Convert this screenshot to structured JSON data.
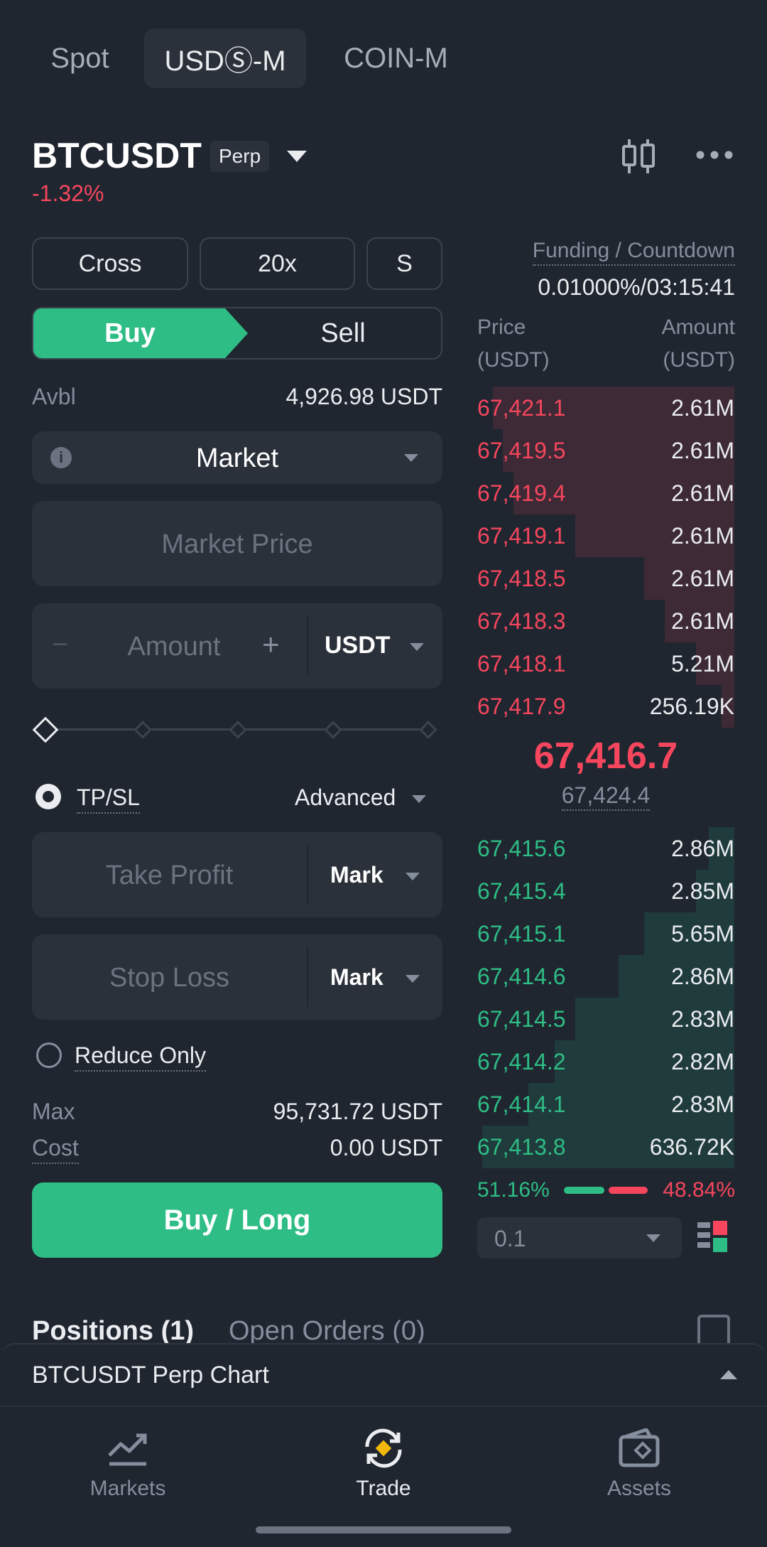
{
  "tabs": [
    "Spot",
    "USDⓈ-M",
    "COIN-M"
  ],
  "symbol": {
    "name": "BTCUSDT",
    "tag": "Perp",
    "change": "-1.32%"
  },
  "controls": {
    "margin_mode": "Cross",
    "leverage": "20x",
    "asset_mode": "S"
  },
  "toggle": {
    "buy": "Buy",
    "sell": "Sell"
  },
  "avbl": {
    "label": "Avbl",
    "value": "4,926.98 USDT"
  },
  "order_type": "Market",
  "price_field": {
    "placeholder": "Market Price"
  },
  "amount_field": {
    "placeholder": "Amount",
    "unit": "USDT",
    "minus": "−",
    "plus": "+"
  },
  "slider": {
    "percent": 0
  },
  "tpsl": {
    "label": "TP/SL",
    "advanced": "Advanced"
  },
  "take_profit": {
    "placeholder": "Take Profit",
    "trigger": "Mark"
  },
  "stop_loss": {
    "placeholder": "Stop Loss",
    "trigger": "Mark"
  },
  "reduce_only": "Reduce Only",
  "max": {
    "label": "Max",
    "value": "95,731.72 USDT"
  },
  "cost": {
    "label": "Cost",
    "value": "0.00 USDT"
  },
  "submit": "Buy / Long",
  "funding": {
    "label": "Funding / Countdown",
    "value": "0.01000%/03:15:41"
  },
  "orderbook": {
    "price_header": "Price",
    "price_unit": "(USDT)",
    "amount_header": "Amount",
    "amount_unit": "(USDT)",
    "asks": [
      {
        "price": "67,421.1",
        "amount": "2.61M",
        "depth": 0.94
      },
      {
        "price": "67,419.5",
        "amount": "2.61M",
        "depth": 0.9
      },
      {
        "price": "67,419.4",
        "amount": "2.61M",
        "depth": 0.86
      },
      {
        "price": "67,419.1",
        "amount": "2.61M",
        "depth": 0.62
      },
      {
        "price": "67,418.5",
        "amount": "2.61M",
        "depth": 0.35
      },
      {
        "price": "67,418.3",
        "amount": "2.61M",
        "depth": 0.27
      },
      {
        "price": "67,418.1",
        "amount": "5.21M",
        "depth": 0.15
      },
      {
        "price": "67,417.9",
        "amount": "256.19K",
        "depth": 0.05
      }
    ],
    "last_price": "67,416.7",
    "mark_price": "67,424.4",
    "bids": [
      {
        "price": "67,415.6",
        "amount": "2.86M",
        "depth": 0.1
      },
      {
        "price": "67,415.4",
        "amount": "2.85M",
        "depth": 0.15
      },
      {
        "price": "67,415.1",
        "amount": "5.65M",
        "depth": 0.35
      },
      {
        "price": "67,414.6",
        "amount": "2.86M",
        "depth": 0.45
      },
      {
        "price": "67,414.5",
        "amount": "2.83M",
        "depth": 0.62
      },
      {
        "price": "67,414.2",
        "amount": "2.82M",
        "depth": 0.7
      },
      {
        "price": "67,414.1",
        "amount": "2.83M",
        "depth": 0.8
      },
      {
        "price": "67,413.8",
        "amount": "636.72K",
        "depth": 0.98
      }
    ],
    "buy_ratio": "51.16%",
    "sell_ratio": "48.84%",
    "buy_ratio_value": 0.5116,
    "precision": "0.1"
  },
  "positions_tabs": {
    "positions": "Positions (1)",
    "open_orders": "Open Orders (0)"
  },
  "chart_bar": "BTCUSDT Perp Chart",
  "bottom_nav": [
    "Markets",
    "Trade",
    "Assets"
  ],
  "colors": {
    "green": "#2ebd85",
    "red": "#f6465d",
    "bg": "#1f2630"
  }
}
